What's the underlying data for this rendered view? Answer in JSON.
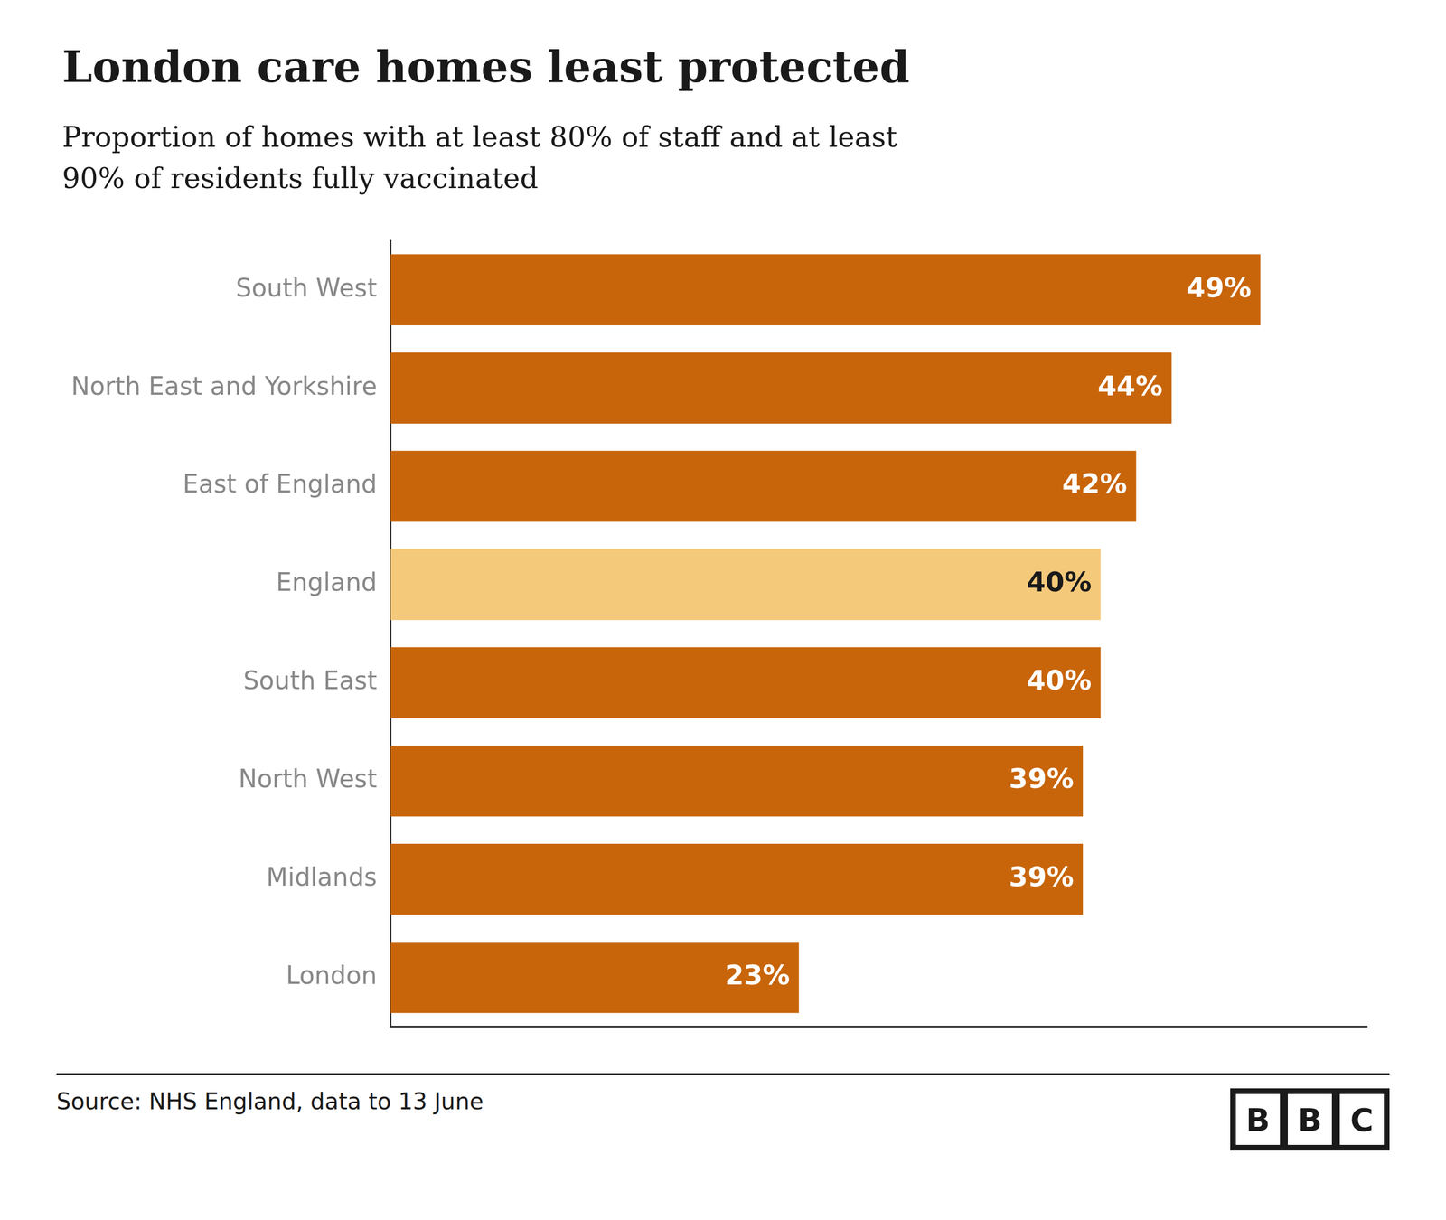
{
  "chart_data": {
    "type": "bar",
    "orientation": "horizontal",
    "title": "London care homes least protected",
    "subtitle": "Proportion of homes with at least 80% of staff and at least\n90% of residents fully vaccinated",
    "annotations": [
      "Source: NHS England, data to 13 June",
      "BBC"
    ],
    "categories": [
      "South West",
      "North East and Yorkshire",
      "East of England",
      "England",
      "South East",
      "North West",
      "Midlands",
      "London"
    ],
    "values": [
      49,
      44,
      42,
      40,
      40,
      39,
      39,
      23
    ],
    "value_labels": [
      "49%",
      "44%",
      "42%",
      "40%",
      "40%",
      "39%",
      "39%",
      "23%"
    ],
    "colors": [
      "#c8650a",
      "#c8650a",
      "#c8650a",
      "#f5c97a",
      "#c8650a",
      "#c8650a",
      "#c8650a",
      "#c8650a"
    ],
    "xlim": [
      0,
      55
    ],
    "data_labels": true,
    "tick_labels": "y",
    "grid": false
  }
}
